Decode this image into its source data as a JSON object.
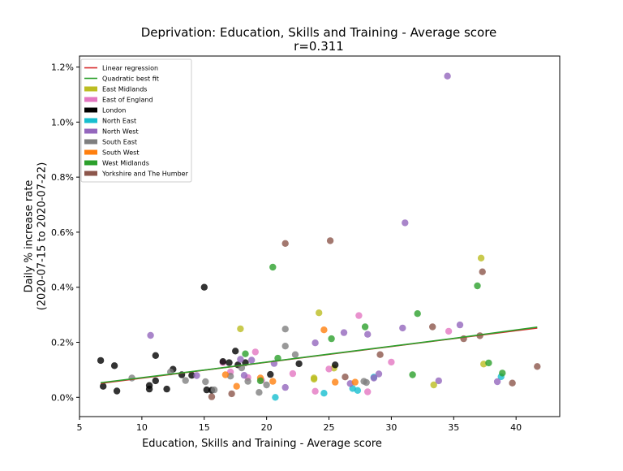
{
  "chart_data": {
    "type": "scatter",
    "title": "Deprivation: Education, Skills and Training - Average score",
    "subtitle": "r=0.311",
    "xlabel": "Education, Skills and Training - Average score",
    "ylabel": "Daily % increase rate\n(2020-07-15 to 2020-07-22)",
    "xlim": [
      5.0,
      43.5
    ],
    "ylim": [
      -0.0007,
      0.0124
    ],
    "xticks": [
      5,
      10,
      15,
      20,
      25,
      30,
      35,
      40
    ],
    "yticks": [
      0.0,
      0.002,
      0.004,
      0.006,
      0.008,
      0.01,
      0.012
    ],
    "ytick_labels": [
      "0.0%",
      "0.2%",
      "0.4%",
      "0.6%",
      "0.8%",
      "1.0%",
      "1.2%"
    ],
    "grid": false,
    "legend_position": "top-left",
    "fits": [
      {
        "name": "Linear regression",
        "color": "#d62728",
        "points": [
          [
            6.7,
            0.00051
          ],
          [
            41.7,
            0.00252
          ]
        ]
      },
      {
        "name": "Quadratic best fit",
        "color": "#2ca02c",
        "points": [
          [
            6.7,
            0.00053
          ],
          [
            15,
            0.00099
          ],
          [
            25,
            0.00157
          ],
          [
            35,
            0.00214
          ],
          [
            41.7,
            0.00255
          ]
        ]
      }
    ],
    "series": [
      {
        "name": "East Midlands",
        "color": "#bcbd22",
        "points": [
          [
            17.9,
            0.00249
          ],
          [
            23.8,
            0.00066
          ],
          [
            23.8,
            0.0007
          ],
          [
            24.2,
            0.00307
          ],
          [
            25.4,
            0.00106
          ],
          [
            33.4,
            0.00045
          ],
          [
            37.2,
            0.00506
          ],
          [
            37.4,
            0.00121
          ]
        ]
      },
      {
        "name": "East of England",
        "color": "#e377c2",
        "points": [
          [
            16.5,
            0.00126
          ],
          [
            17.1,
            0.00092
          ],
          [
            18.5,
            0.00072
          ],
          [
            19.1,
            0.00165
          ],
          [
            19.6,
            0.00062
          ],
          [
            22.1,
            0.00086
          ],
          [
            23.9,
            0.00022
          ],
          [
            25.0,
            0.00103
          ],
          [
            27.4,
            0.00297
          ],
          [
            28.1,
            0.0002
          ],
          [
            30.0,
            0.00128
          ],
          [
            34.6,
            0.0024
          ]
        ]
      },
      {
        "name": "London",
        "color": "#000000",
        "points": [
          [
            6.7,
            0.00134
          ],
          [
            6.9,
            0.0004
          ],
          [
            7.8,
            0.00115
          ],
          [
            8.0,
            0.00023
          ],
          [
            10.6,
            0.00043
          ],
          [
            10.6,
            0.0003
          ],
          [
            11.1,
            0.00152
          ],
          [
            11.1,
            0.0006
          ],
          [
            12.0,
            0.0003
          ],
          [
            12.5,
            0.00102
          ],
          [
            13.2,
            0.00082
          ],
          [
            14.0,
            0.0008
          ],
          [
            15.0,
            0.004
          ],
          [
            15.2,
            0.00027
          ],
          [
            15.6,
            0.00026
          ],
          [
            16.5,
            0.0013
          ],
          [
            17.0,
            0.00126
          ],
          [
            17.5,
            0.00168
          ],
          [
            17.7,
            0.00118
          ],
          [
            18.3,
            0.00126
          ],
          [
            20.3,
            0.00083
          ],
          [
            22.6,
            0.00122
          ],
          [
            25.5,
            0.00118
          ]
        ]
      },
      {
        "name": "North East",
        "color": "#17becf",
        "points": [
          [
            20.7,
            0.0
          ],
          [
            24.6,
            0.00015
          ],
          [
            26.9,
            0.00032
          ],
          [
            27.3,
            0.00025
          ],
          [
            28.6,
            0.00073
          ],
          [
            38.8,
            0.00075
          ]
        ]
      },
      {
        "name": "North West",
        "color": "#9467bd",
        "points": [
          [
            10.7,
            0.00225
          ],
          [
            14.4,
            0.00079
          ],
          [
            17.9,
            0.00138
          ],
          [
            18.2,
            0.0008
          ],
          [
            18.8,
            0.00135
          ],
          [
            20.6,
            0.00123
          ],
          [
            21.5,
            0.00036
          ],
          [
            23.9,
            0.00198
          ],
          [
            26.2,
            0.00235
          ],
          [
            26.7,
            0.0005
          ],
          [
            28.1,
            0.00229
          ],
          [
            28.6,
            0.0007
          ],
          [
            29.0,
            0.00085
          ],
          [
            30.9,
            0.00252
          ],
          [
            31.1,
            0.00634
          ],
          [
            33.8,
            0.0006
          ],
          [
            34.5,
            0.01167
          ],
          [
            35.5,
            0.00263
          ],
          [
            38.5,
            0.00057
          ]
        ]
      },
      {
        "name": "South East",
        "color": "#7f7f7f",
        "points": [
          [
            9.2,
            0.0007
          ],
          [
            12.3,
            0.00092
          ],
          [
            13.5,
            0.00061
          ],
          [
            15.1,
            0.00057
          ],
          [
            15.8,
            0.00027
          ],
          [
            17.1,
            0.00077
          ],
          [
            18.0,
            0.00107
          ],
          [
            18.5,
            0.00058
          ],
          [
            19.4,
            0.00018
          ],
          [
            20.0,
            0.00045
          ],
          [
            21.5,
            0.00186
          ],
          [
            21.5,
            0.00248
          ],
          [
            22.3,
            0.00155
          ],
          [
            27.8,
            0.00058
          ],
          [
            28.0,
            0.00054
          ]
        ]
      },
      {
        "name": "South West",
        "color": "#ff7f0e",
        "points": [
          [
            16.7,
            0.00082
          ],
          [
            17.6,
            0.0004
          ],
          [
            19.5,
            0.0007
          ],
          [
            20.5,
            0.00058
          ],
          [
            24.6,
            0.00245
          ],
          [
            25.5,
            0.00055
          ],
          [
            27.1,
            0.00055
          ]
        ]
      },
      {
        "name": "West Midlands",
        "color": "#2ca02c",
        "points": [
          [
            18.3,
            0.00158
          ],
          [
            19.5,
            0.0006
          ],
          [
            20.5,
            0.00473
          ],
          [
            20.9,
            0.00142
          ],
          [
            25.2,
            0.00213
          ],
          [
            27.9,
            0.00256
          ],
          [
            31.7,
            0.00082
          ],
          [
            32.1,
            0.00304
          ],
          [
            36.9,
            0.00405
          ],
          [
            37.8,
            0.00125
          ],
          [
            38.9,
            0.00088
          ]
        ]
      },
      {
        "name": "Yorkshire and The Humber",
        "color": "#8c564b",
        "points": [
          [
            15.6,
            2e-05
          ],
          [
            17.2,
            0.00013
          ],
          [
            21.5,
            0.00559
          ],
          [
            25.1,
            0.00569
          ],
          [
            26.3,
            0.00074
          ],
          [
            29.1,
            0.00155
          ],
          [
            33.3,
            0.00256
          ],
          [
            35.8,
            0.00213
          ],
          [
            37.1,
            0.00224
          ],
          [
            37.3,
            0.00456
          ],
          [
            39.7,
            0.00052
          ],
          [
            41.7,
            0.00112
          ]
        ]
      }
    ]
  }
}
